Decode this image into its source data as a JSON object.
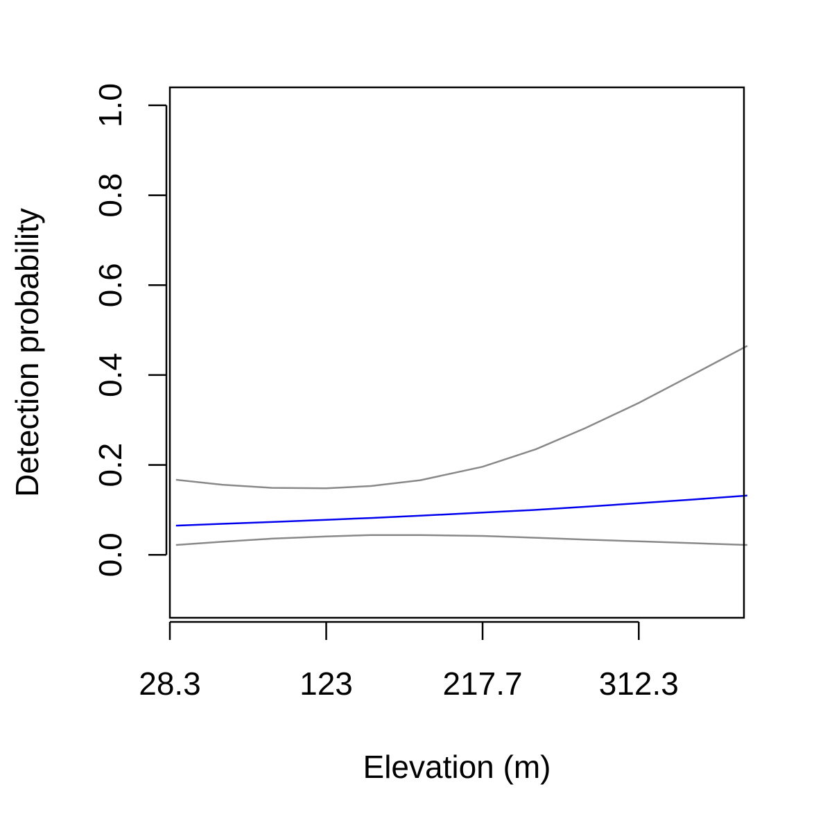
{
  "chart_data": {
    "type": "line",
    "title": "",
    "xlabel": "Elevation (m)",
    "ylabel": "Detection probability",
    "xlim": [
      28.3,
      376.0
    ],
    "ylim": [
      -0.14,
      1.04
    ],
    "x_ticks": [
      28.3,
      123,
      217.7,
      312.3
    ],
    "x_tick_labels": [
      "28.3",
      "123",
      "217.7",
      "312.3"
    ],
    "y_ticks": [
      0.0,
      0.2,
      0.4,
      0.6,
      0.8,
      1.0
    ],
    "y_tick_labels": [
      "0.0",
      "0.2",
      "0.4",
      "0.6",
      "0.8",
      "1.0"
    ],
    "grid": false,
    "legend": "none",
    "series": [
      {
        "role": "estimate",
        "color": "#0000ee",
        "x": [
          32,
          60,
          90,
          123,
          150,
          180,
          217.7,
          250,
          280,
          312.3,
          345,
          378
        ],
        "y": [
          0.065,
          0.069,
          0.073,
          0.078,
          0.082,
          0.087,
          0.094,
          0.1,
          0.107,
          0.115,
          0.123,
          0.132
        ]
      },
      {
        "role": "upper",
        "color": "#888888",
        "x": [
          32,
          60,
          90,
          123,
          150,
          180,
          217.7,
          250,
          280,
          312.3,
          345,
          378
        ],
        "y": [
          0.167,
          0.156,
          0.149,
          0.148,
          0.153,
          0.166,
          0.196,
          0.235,
          0.282,
          0.338,
          0.401,
          0.465
        ]
      },
      {
        "role": "lower",
        "color": "#888888",
        "x": [
          32,
          60,
          90,
          123,
          150,
          180,
          217.7,
          250,
          280,
          312.3,
          345,
          378
        ],
        "y": [
          0.022,
          0.029,
          0.036,
          0.041,
          0.044,
          0.044,
          0.042,
          0.038,
          0.034,
          0.03,
          0.026,
          0.022
        ]
      }
    ]
  }
}
